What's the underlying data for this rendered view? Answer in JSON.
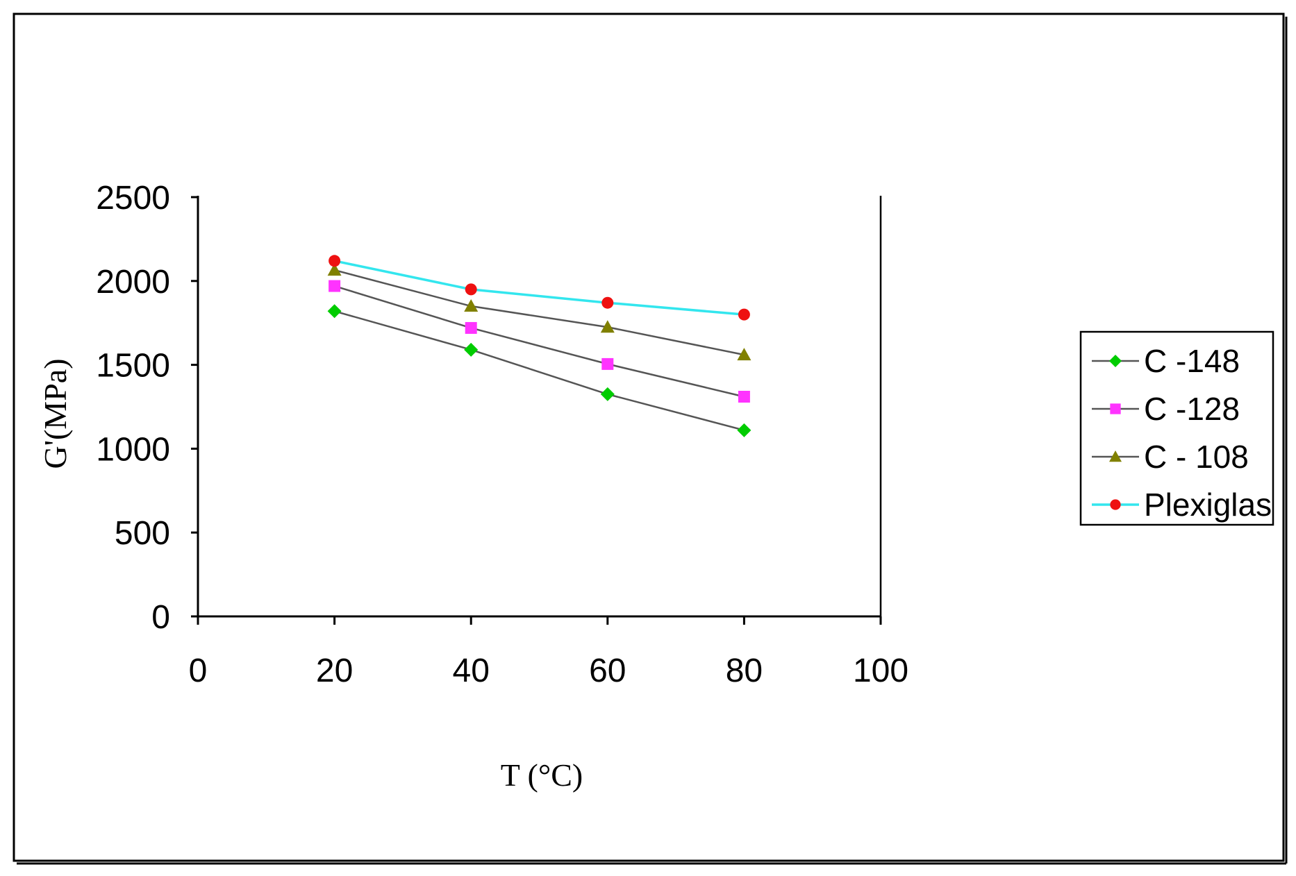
{
  "chart_data": {
    "type": "line",
    "title": "",
    "xlabel": "T (°C)",
    "ylabel": "G'(MPa)",
    "xlim": [
      0,
      100
    ],
    "ylim": [
      0,
      2500
    ],
    "x_ticks": [
      "0",
      "20",
      "40",
      "60",
      "80",
      "100"
    ],
    "y_ticks": [
      "0",
      "500",
      "1000",
      "1500",
      "2000",
      "2500"
    ],
    "grid": false,
    "legend_position": "right",
    "x": [
      20,
      40,
      60,
      80
    ],
    "series": [
      {
        "name": "C -148",
        "values": [
          1820,
          1590,
          1325,
          1110
        ],
        "marker": "diamond",
        "line_color": "#555555",
        "marker_color": "#00cc00"
      },
      {
        "name": "C -128",
        "values": [
          1970,
          1720,
          1505,
          1310
        ],
        "marker": "square",
        "line_color": "#555555",
        "marker_color": "#ff33ff"
      },
      {
        "name": "C - 108",
        "values": [
          2065,
          1850,
          1725,
          1560
        ],
        "marker": "triangle",
        "line_color": "#555555",
        "marker_color": "#808000"
      },
      {
        "name": "Plexiglas",
        "values": [
          2120,
          1950,
          1870,
          1800
        ],
        "marker": "circle",
        "line_color": "#33e6ee",
        "marker_color": "#ee1111"
      }
    ]
  }
}
